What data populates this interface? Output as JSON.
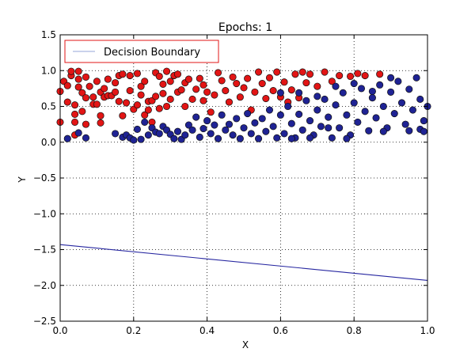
{
  "chart_data": {
    "type": "scatter",
    "title": "Epochs: 1",
    "xlabel": "X",
    "ylabel": "Y",
    "xlim": [
      0.0,
      1.0
    ],
    "ylim": [
      -2.5,
      1.5
    ],
    "xticks": [
      "0.0",
      "0.2",
      "0.4",
      "0.6",
      "0.8",
      "1.0"
    ],
    "yticks": [
      "1.5",
      "1.0",
      "0.5",
      "0.0",
      "−0.5",
      "−1.0",
      "−1.5",
      "−2.0",
      "−2.5"
    ],
    "grid": true,
    "legend": {
      "position": "top-left",
      "entries": [
        "Decision Boundary"
      ]
    },
    "colors": {
      "class_a": "#e21515",
      "class_b": "#1f2394",
      "boundary": "#2626a0",
      "legend_border": "#e21515",
      "legend_line": "#b8c4e6"
    },
    "decision_boundary": {
      "x": [
        0.0,
        1.0
      ],
      "y": [
        -1.43,
        -1.93
      ]
    },
    "series": [
      {
        "class": "red",
        "points": [
          [
            0.0,
            0.71
          ],
          [
            0.0,
            0.28
          ],
          [
            0.01,
            0.85
          ],
          [
            0.02,
            0.56
          ],
          [
            0.02,
            0.79
          ],
          [
            0.03,
            0.93
          ],
          [
            0.03,
            0.99
          ],
          [
            0.04,
            0.52
          ],
          [
            0.04,
            0.39
          ],
          [
            0.04,
            0.28
          ],
          [
            0.04,
            0.1
          ],
          [
            0.05,
            0.88
          ],
          [
            0.05,
            0.77
          ],
          [
            0.05,
            0.99
          ],
          [
            0.06,
            0.69
          ],
          [
            0.06,
            0.43
          ],
          [
            0.07,
            0.25
          ],
          [
            0.07,
            0.62
          ],
          [
            0.07,
            0.91
          ],
          [
            0.08,
            0.78
          ],
          [
            0.09,
            0.63
          ],
          [
            0.09,
            0.53
          ],
          [
            0.1,
            0.53
          ],
          [
            0.1,
            0.85
          ],
          [
            0.11,
            0.7
          ],
          [
            0.11,
            0.37
          ],
          [
            0.11,
            0.27
          ],
          [
            0.12,
            0.63
          ],
          [
            0.12,
            0.75
          ],
          [
            0.13,
            0.65
          ],
          [
            0.13,
            0.88
          ],
          [
            0.14,
            0.65
          ],
          [
            0.15,
            0.83
          ],
          [
            0.15,
            0.7
          ],
          [
            0.16,
            0.57
          ],
          [
            0.16,
            0.93
          ],
          [
            0.17,
            0.37
          ],
          [
            0.17,
            0.95
          ],
          [
            0.18,
            0.55
          ],
          [
            0.19,
            0.72
          ],
          [
            0.19,
            0.93
          ],
          [
            0.2,
            0.46
          ],
          [
            0.21,
            0.96
          ],
          [
            0.21,
            0.52
          ],
          [
            0.22,
            0.66
          ],
          [
            0.22,
            0.78
          ],
          [
            0.23,
            0.38
          ],
          [
            0.23,
            0.85
          ],
          [
            0.24,
            0.57
          ],
          [
            0.24,
            0.45
          ],
          [
            0.25,
            0.58
          ],
          [
            0.25,
            0.28
          ],
          [
            0.26,
            0.97
          ],
          [
            0.26,
            0.64
          ],
          [
            0.27,
            0.92
          ],
          [
            0.27,
            0.47
          ],
          [
            0.28,
            0.81
          ],
          [
            0.28,
            0.68
          ],
          [
            0.29,
            0.5
          ],
          [
            0.29,
            0.99
          ],
          [
            0.3,
            0.6
          ],
          [
            0.3,
            0.85
          ],
          [
            0.31,
            0.93
          ],
          [
            0.32,
            0.7
          ],
          [
            0.32,
            0.95
          ],
          [
            0.33,
            0.73
          ],
          [
            0.34,
            0.83
          ],
          [
            0.34,
            0.5
          ],
          [
            0.35,
            0.88
          ],
          [
            0.36,
            0.6
          ],
          [
            0.37,
            0.74
          ],
          [
            0.38,
            0.89
          ],
          [
            0.39,
            0.58
          ],
          [
            0.39,
            0.8
          ],
          [
            0.4,
            0.7
          ],
          [
            0.41,
            0.42
          ],
          [
            0.42,
            0.66
          ],
          [
            0.43,
            0.97
          ],
          [
            0.44,
            0.86
          ],
          [
            0.45,
            0.72
          ],
          [
            0.46,
            0.56
          ],
          [
            0.47,
            0.91
          ],
          [
            0.48,
            0.82
          ],
          [
            0.49,
            0.63
          ],
          [
            0.5,
            0.76
          ],
          [
            0.51,
            0.89
          ],
          [
            0.52,
            0.45
          ],
          [
            0.53,
            0.7
          ],
          [
            0.54,
            0.98
          ],
          [
            0.55,
            0.82
          ],
          [
            0.56,
            0.61
          ],
          [
            0.57,
            0.9
          ],
          [
            0.58,
            0.72
          ],
          [
            0.59,
            0.98
          ],
          [
            0.6,
            0.63
          ],
          [
            0.61,
            0.84
          ],
          [
            0.62,
            0.56
          ],
          [
            0.63,
            0.73
          ],
          [
            0.64,
            0.95
          ],
          [
            0.65,
            0.62
          ],
          [
            0.66,
            0.98
          ],
          [
            0.67,
            0.83
          ],
          [
            0.68,
            0.95
          ],
          [
            0.7,
            0.78
          ],
          [
            0.72,
            0.98
          ],
          [
            0.74,
            0.85
          ],
          [
            0.76,
            0.93
          ],
          [
            0.79,
            0.92
          ],
          [
            0.81,
            0.96
          ],
          [
            0.83,
            0.93
          ],
          [
            0.87,
            0.95
          ]
        ]
      },
      {
        "class": "blue",
        "points": [
          [
            0.02,
            0.05
          ],
          [
            0.05,
            0.13
          ],
          [
            0.07,
            0.06
          ],
          [
            0.15,
            0.12
          ],
          [
            0.17,
            0.07
          ],
          [
            0.18,
            0.1
          ],
          [
            0.19,
            0.06
          ],
          [
            0.2,
            0.03
          ],
          [
            0.21,
            0.18
          ],
          [
            0.22,
            0.04
          ],
          [
            0.23,
            0.28
          ],
          [
            0.24,
            0.1
          ],
          [
            0.25,
            0.2
          ],
          [
            0.26,
            0.14
          ],
          [
            0.27,
            0.12
          ],
          [
            0.28,
            0.22
          ],
          [
            0.29,
            0.17
          ],
          [
            0.3,
            0.11
          ],
          [
            0.31,
            0.05
          ],
          [
            0.32,
            0.15
          ],
          [
            0.33,
            0.04
          ],
          [
            0.34,
            0.1
          ],
          [
            0.35,
            0.24
          ],
          [
            0.36,
            0.17
          ],
          [
            0.37,
            0.35
          ],
          [
            0.38,
            0.07
          ],
          [
            0.39,
            0.19
          ],
          [
            0.4,
            0.3
          ],
          [
            0.41,
            0.12
          ],
          [
            0.42,
            0.24
          ],
          [
            0.43,
            0.05
          ],
          [
            0.44,
            0.38
          ],
          [
            0.45,
            0.17
          ],
          [
            0.46,
            0.25
          ],
          [
            0.47,
            0.1
          ],
          [
            0.48,
            0.33
          ],
          [
            0.49,
            0.05
          ],
          [
            0.5,
            0.2
          ],
          [
            0.51,
            0.4
          ],
          [
            0.52,
            0.12
          ],
          [
            0.53,
            0.27
          ],
          [
            0.54,
            0.05
          ],
          [
            0.55,
            0.33
          ],
          [
            0.56,
            0.15
          ],
          [
            0.57,
            0.45
          ],
          [
            0.58,
            0.22
          ],
          [
            0.59,
            0.06
          ],
          [
            0.6,
            0.38
          ],
          [
            0.61,
            0.12
          ],
          [
            0.62,
            0.5
          ],
          [
            0.63,
            0.26
          ],
          [
            0.64,
            0.06
          ],
          [
            0.65,
            0.39
          ],
          [
            0.66,
            0.17
          ],
          [
            0.67,
            0.58
          ],
          [
            0.68,
            0.3
          ],
          [
            0.69,
            0.1
          ],
          [
            0.7,
            0.45
          ],
          [
            0.71,
            0.22
          ],
          [
            0.72,
            0.6
          ],
          [
            0.73,
            0.35
          ],
          [
            0.74,
            0.06
          ],
          [
            0.75,
            0.52
          ],
          [
            0.76,
            0.2
          ],
          [
            0.77,
            0.69
          ],
          [
            0.78,
            0.38
          ],
          [
            0.79,
            0.1
          ],
          [
            0.8,
            0.55
          ],
          [
            0.81,
            0.28
          ],
          [
            0.82,
            0.75
          ],
          [
            0.83,
            0.43
          ],
          [
            0.84,
            0.16
          ],
          [
            0.85,
            0.62
          ],
          [
            0.86,
            0.34
          ],
          [
            0.87,
            0.8
          ],
          [
            0.88,
            0.5
          ],
          [
            0.89,
            0.2
          ],
          [
            0.9,
            0.7
          ],
          [
            0.91,
            0.4
          ],
          [
            0.92,
            0.85
          ],
          [
            0.93,
            0.55
          ],
          [
            0.94,
            0.25
          ],
          [
            0.95,
            0.74
          ],
          [
            0.96,
            0.45
          ],
          [
            0.97,
            0.9
          ],
          [
            0.98,
            0.6
          ],
          [
            0.99,
            0.3
          ],
          [
            1.0,
            0.5
          ],
          [
            0.6,
            0.69
          ],
          [
            0.65,
            0.69
          ],
          [
            0.7,
            0.64
          ],
          [
            0.75,
            0.78
          ],
          [
            0.8,
            0.82
          ],
          [
            0.85,
            0.71
          ],
          [
            0.9,
            0.9
          ],
          [
            0.95,
            0.16
          ],
          [
            0.98,
            0.18
          ],
          [
            0.99,
            0.15
          ],
          [
            0.63,
            0.05
          ],
          [
            0.68,
            0.06
          ],
          [
            0.73,
            0.2
          ],
          [
            0.78,
            0.05
          ],
          [
            0.88,
            0.15
          ]
        ]
      }
    ]
  }
}
